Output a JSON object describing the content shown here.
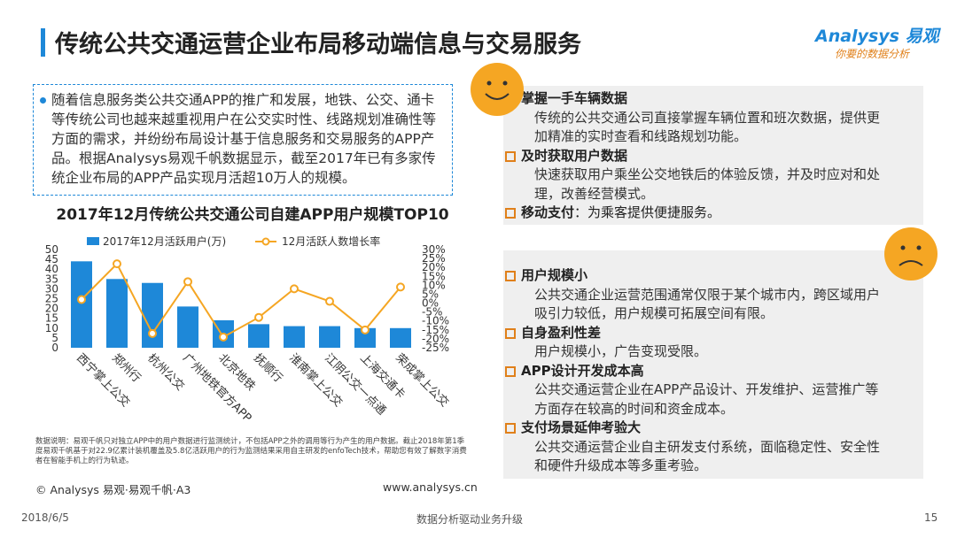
{
  "header": {
    "title": "传统公共交通运营企业布局移动端信息与交易服务"
  },
  "logo": {
    "brand": "Analysys 易观",
    "tagline": "你要的数据分析"
  },
  "intro": "随着信息服务类公共交通APP的推广和发展，地铁、公交、通卡等传统公司也越来越重视用户在公交实时性、线路规划准确性等方面的需求，并纷纷布局设计基于信息服务和交易服务的APP产品。根据Analysys易观千帆数据显示，截至2017年已有多家传统企业布局的APP产品实现月活超10万人的规模。",
  "chart_data": {
    "type": "bar-line",
    "title": "2017年12月传统公共交通公司自建APP用户规模TOP10",
    "categories": [
      "西宁掌上公交",
      "郑州行",
      "杭州公交",
      "广州地铁官方APP",
      "北京地铁",
      "抚顺行",
      "淮南掌上公交",
      "江阴公交一点通",
      "上海交通卡",
      "荣成掌上公交"
    ],
    "series": [
      {
        "name": "2017年12月活跃用户(万)",
        "color": "#1e88d8",
        "type": "bar",
        "values": [
          44,
          35,
          33,
          21,
          14,
          12,
          11,
          11,
          10,
          10
        ]
      },
      {
        "name": "12月活跃人数增长率",
        "color": "#f5a623",
        "type": "line",
        "axis": "y2",
        "values": [
          2,
          22,
          -17,
          12,
          -19,
          -8,
          8,
          1,
          -15,
          9
        ]
      }
    ],
    "ylim": [
      0,
      50
    ],
    "yticks": [
      0,
      5,
      10,
      15,
      20,
      25,
      30,
      35,
      40,
      45,
      50
    ],
    "y2lim": [
      -25,
      30
    ],
    "y2ticks": [
      {
        "value": -25,
        "label": "-25%"
      },
      {
        "value": -20,
        "label": "-20%"
      },
      {
        "value": -15,
        "label": "-15%"
      },
      {
        "value": -10,
        "label": "-10%"
      },
      {
        "value": -5,
        "label": "-5%"
      },
      {
        "value": 0,
        "label": "0%"
      },
      {
        "value": 5,
        "label": "5%"
      },
      {
        "value": 10,
        "label": "10%"
      },
      {
        "value": 15,
        "label": "15%"
      },
      {
        "value": 20,
        "label": "20%"
      },
      {
        "value": 25,
        "label": "25%"
      },
      {
        "value": 30,
        "label": "30%"
      }
    ],
    "grid": false,
    "legend": "top"
  },
  "note": "数据说明：易观千帆只对独立APP中的用户数据进行监测统计，不包括APP之外的调用等行为产生的用户数据。截止2018年第1季度易观千帆基于对22.9亿累计装机覆盖及5.8亿活跃用户的行为监测结果采用自主研发的enfoTech技术，帮助您有效了解数字消费者在智能手机上的行为轨迹。",
  "source": "© Analysys 易观·易观千帆·A3",
  "website": "www.analysys.cn",
  "pros": {
    "items": [
      {
        "heading": "掌握一手车辆数据",
        "body": "传统的公共交通公司直接掌握车辆位置和班次数据，提供更加精准的实时查看和线路规划功能。"
      },
      {
        "heading": "及时获取用户数据",
        "body": "快速获取用户乘坐公交地铁后的体验反馈，并及时应对和处理，改善经营模式。"
      },
      {
        "heading": "移动支付",
        "body": "：为乘客提供便捷服务。"
      }
    ]
  },
  "cons": {
    "items": [
      {
        "heading": "用户规模小",
        "body": "公共交通企业运营范围通常仅限于某个城市内，跨区域用户吸引力较低，用户规模可拓展空间有限。"
      },
      {
        "heading": "自身盈利性差",
        "body": "用户规模小，广告变现受限。"
      },
      {
        "heading": "APP设计开发成本高",
        "body": "公共交通运营企业在APP产品设计、开发维护、运营推广等方面存在较高的时间和资金成本。"
      },
      {
        "heading": "支付场景延伸考验大",
        "body": "公共交通运营企业自主研发支付系统，面临稳定性、安全性和硬件升级成本等多重考验。"
      }
    ]
  },
  "footer": {
    "date": "2018/6/5",
    "slogan": "数据分析驱动业务升级",
    "page": "15"
  }
}
